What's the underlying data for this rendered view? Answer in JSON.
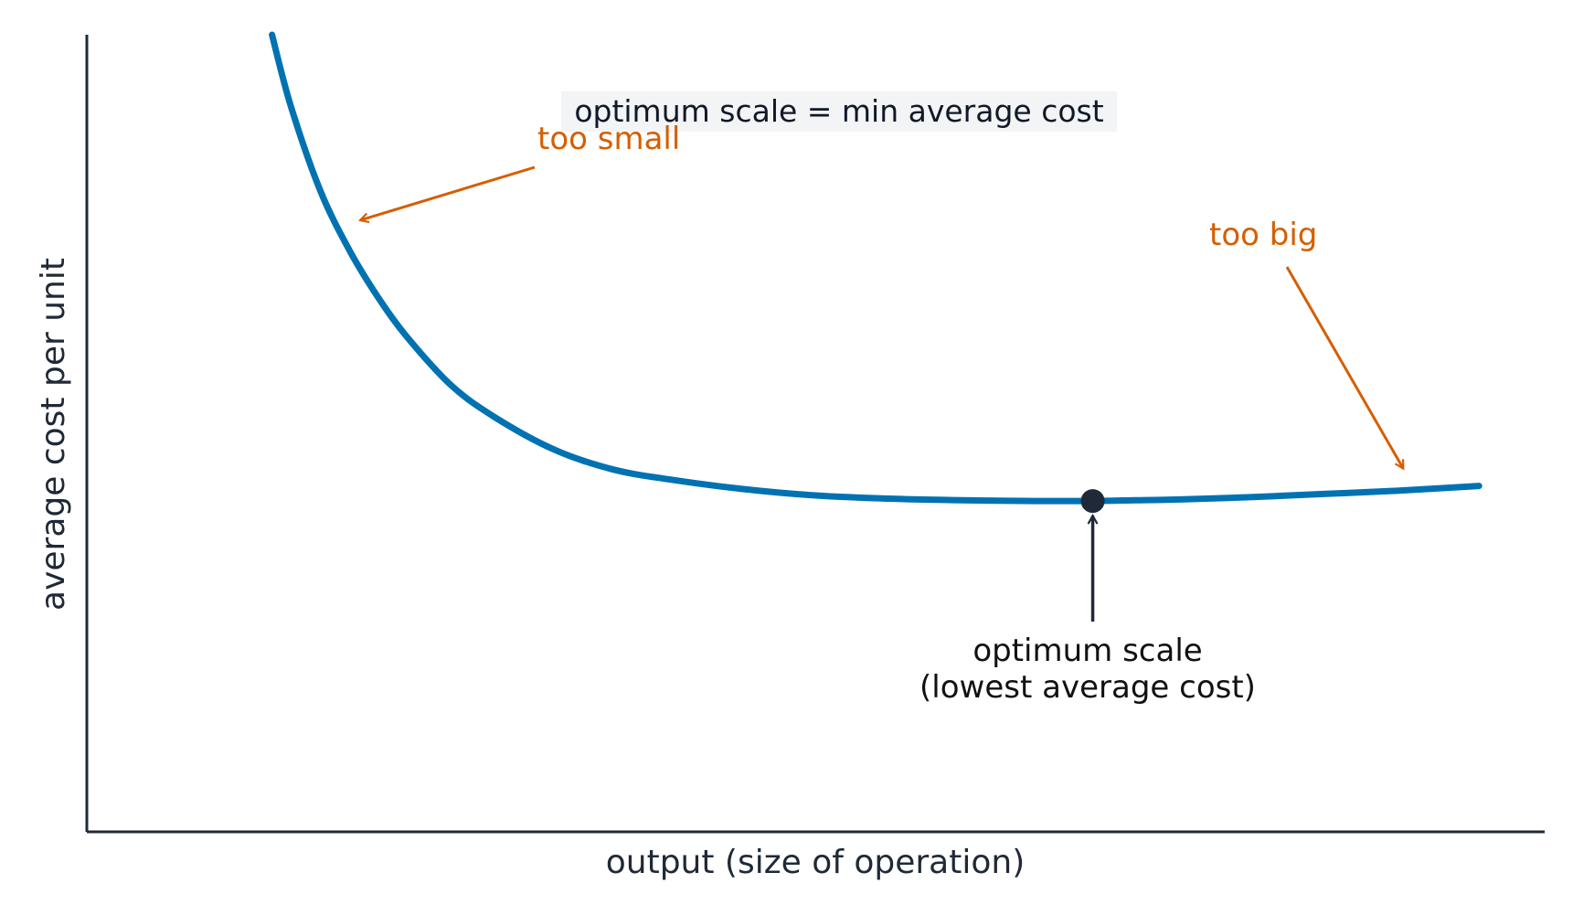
{
  "chart_data": {
    "type": "line",
    "title": "optimum scale = min average cost",
    "xlabel": "output (size of operation)",
    "ylabel": "average cost per unit",
    "xlim": [
      0,
      10
    ],
    "ylim": [
      0,
      10
    ],
    "grid": false,
    "series": [
      {
        "values_note": "",
        "x": [
          1.27,
          1.4,
          1.6,
          1.8,
          2.0,
          2.2,
          2.5,
          2.8,
          3.2,
          3.6,
          4.0,
          4.5,
          5.0,
          5.5,
          6.0,
          6.5,
          6.9,
          7.2,
          7.5,
          8.0,
          8.5,
          9.0,
          9.55
        ],
        "y": [
          10.0,
          9.1,
          8.05,
          7.3,
          6.7,
          6.2,
          5.6,
          5.2,
          4.8,
          4.55,
          4.42,
          4.3,
          4.22,
          4.18,
          4.16,
          4.15,
          4.15,
          4.16,
          4.17,
          4.2,
          4.24,
          4.28,
          4.34
        ]
      }
    ],
    "colors": {
      "curve": "#0072b2",
      "annotation_warn": "#d55e00",
      "annotation_dark": "#1f2937",
      "axis": "#1f2937",
      "title_bg": "#f3f4f6"
    },
    "optimum_point": {
      "x": 6.9,
      "y": 4.15
    },
    "annotations": {
      "too_small": {
        "text": "too small",
        "target": {
          "x": 1.85,
          "y": 7.65
        }
      },
      "too_big": {
        "text": "too big",
        "target": {
          "x": 9.03,
          "y": 4.42
        }
      },
      "optimum": {
        "line1": "optimum scale",
        "line2": "(lowest average cost)"
      }
    }
  }
}
